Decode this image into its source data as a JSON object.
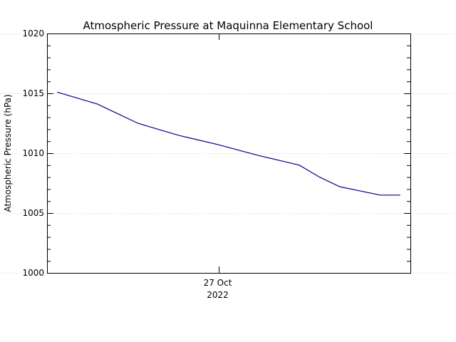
{
  "chart_data": {
    "type": "line",
    "title": "Atmospheric Pressure at Maquinna Elementary School",
    "xlabel": "",
    "ylabel": "Atmospheric Pressure (hPa)",
    "ylim": [
      1000,
      1020
    ],
    "yticks": [
      "1000",
      "1005",
      "1010",
      "1015",
      "1020"
    ],
    "xlim": [
      "2022-10-26T07:00",
      "2022-10-27T19:00"
    ],
    "xtick": {
      "at": "2022-10-27T00:00",
      "label_line1": "27 Oct",
      "label_line2": "2022"
    },
    "grid": true,
    "series": [
      {
        "name": "",
        "color": "#00008b",
        "x": [
          "2022-10-26T08:00",
          "2022-10-26T10:00",
          "2022-10-26T12:00",
          "2022-10-26T14:00",
          "2022-10-26T16:00",
          "2022-10-26T18:00",
          "2022-10-26T20:00",
          "2022-10-26T22:00",
          "2022-10-27T00:00",
          "2022-10-27T02:00",
          "2022-10-27T04:00",
          "2022-10-27T06:00",
          "2022-10-27T08:00",
          "2022-10-27T10:00",
          "2022-10-27T12:00",
          "2022-10-27T14:00",
          "2022-10-27T16:00",
          "2022-10-27T18:00"
        ],
        "values": [
          1015.1,
          1014.6,
          1014.1,
          1013.3,
          1012.5,
          1012.0,
          1011.5,
          1011.1,
          1010.7,
          1010.25,
          1009.8,
          1009.4,
          1009.0,
          1008.0,
          1007.2,
          1006.85,
          1006.5,
          1006.5
        ]
      }
    ]
  }
}
